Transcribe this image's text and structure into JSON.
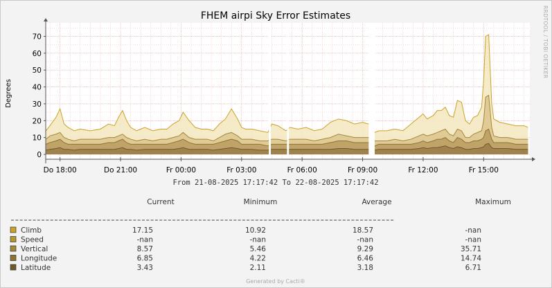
{
  "chart_data": {
    "type": "area",
    "title": "FHEM airpi Sky Error Estimates",
    "ylabel": "Degrees",
    "ylim": [
      0,
      78
    ],
    "yticks": [
      0,
      10,
      20,
      30,
      40,
      50,
      60,
      70
    ],
    "grid": true,
    "x_start_hours": 17.29,
    "x_end_hours": 41.29,
    "x_ticks": [
      {
        "label": "Do 18:00",
        "hour": 18
      },
      {
        "label": "Do 21:00",
        "hour": 21
      },
      {
        "label": "Fr 00:00",
        "hour": 24
      },
      {
        "label": "Fr 03:00",
        "hour": 27
      },
      {
        "label": "Fr 06:00",
        "hour": 30
      },
      {
        "label": "Fr 09:00",
        "hour": 33
      },
      {
        "label": "Fr 12:00",
        "hour": 36
      },
      {
        "label": "Fr 15:00",
        "hour": 39
      }
    ],
    "gaps": [
      [
        28.35,
        28.45
      ],
      [
        29.25,
        29.35
      ],
      [
        33.3,
        33.6
      ]
    ],
    "series": [
      {
        "name": "Climb",
        "color": "#c9a227",
        "x": [
          17.3,
          17.5,
          17.8,
          18.0,
          18.2,
          18.4,
          18.7,
          19.0,
          19.5,
          20.0,
          20.4,
          20.7,
          20.9,
          21.1,
          21.3,
          21.5,
          21.8,
          22.2,
          22.6,
          23.0,
          23.3,
          23.6,
          23.9,
          24.1,
          24.4,
          24.7,
          25.0,
          25.3,
          25.6,
          25.9,
          26.2,
          26.5,
          26.8,
          27.0,
          27.2,
          27.5,
          27.9,
          28.3,
          28.5,
          28.8,
          29.2,
          29.4,
          29.8,
          30.2,
          30.6,
          31.0,
          31.4,
          31.8,
          32.2,
          32.6,
          33.0,
          33.3,
          33.6,
          33.8,
          34.2,
          34.6,
          35.0,
          35.4,
          35.8,
          36.0,
          36.2,
          36.5,
          36.7,
          36.9,
          37.1,
          37.3,
          37.5,
          37.7,
          37.9,
          38.1,
          38.3,
          38.5,
          38.7,
          38.9,
          39.0,
          39.1,
          39.25,
          39.4,
          39.5,
          39.8,
          40.2,
          40.6,
          41.0,
          41.2
        ],
        "values": [
          14,
          17,
          22,
          27,
          18,
          16,
          14,
          15,
          14,
          15,
          18,
          17,
          22,
          26,
          20,
          16,
          14,
          16,
          14,
          15,
          15,
          18,
          20,
          25,
          20,
          16,
          15,
          15,
          14,
          18,
          21,
          27,
          21,
          16,
          15,
          15,
          14,
          13,
          18,
          17,
          14,
          16,
          15,
          16,
          14,
          15,
          19,
          21,
          20,
          18,
          19,
          18,
          13,
          14,
          14,
          15,
          14,
          18,
          22,
          24,
          21,
          23,
          26,
          26,
          28,
          23,
          22,
          32,
          31,
          20,
          18,
          22,
          23,
          28,
          44,
          70,
          71,
          30,
          21,
          19,
          18,
          17,
          17,
          16
        ]
      },
      {
        "name": "Speed",
        "color": "#b5962a",
        "x": [],
        "values": []
      },
      {
        "name": "Vertical",
        "color": "#a3873a",
        "x": [
          17.3,
          17.5,
          17.8,
          18.0,
          18.2,
          18.4,
          18.7,
          19.0,
          19.5,
          20.0,
          20.4,
          20.7,
          20.9,
          21.1,
          21.3,
          21.5,
          21.8,
          22.2,
          22.6,
          23.0,
          23.3,
          23.6,
          23.9,
          24.1,
          24.4,
          24.7,
          25.0,
          25.3,
          25.6,
          25.9,
          26.2,
          26.5,
          26.8,
          27.0,
          27.2,
          27.5,
          27.9,
          28.3,
          28.5,
          28.8,
          29.2,
          29.4,
          29.8,
          30.2,
          30.6,
          31.0,
          31.4,
          31.8,
          32.2,
          32.6,
          33.0,
          33.3,
          33.6,
          33.8,
          34.2,
          34.6,
          35.0,
          35.4,
          35.8,
          36.0,
          36.2,
          36.5,
          36.7,
          36.9,
          37.1,
          37.3,
          37.5,
          37.7,
          37.9,
          38.1,
          38.3,
          38.5,
          38.7,
          38.9,
          39.0,
          39.1,
          39.25,
          39.4,
          39.5,
          39.8,
          40.2,
          40.6,
          41.0,
          41.2
        ],
        "values": [
          9,
          11,
          12,
          13,
          10,
          9,
          8,
          9,
          9,
          9,
          10,
          10,
          11,
          12,
          10,
          9,
          8,
          9,
          8,
          9,
          9,
          10,
          11,
          13,
          10,
          9,
          9,
          9,
          8,
          10,
          12,
          13,
          11,
          9,
          9,
          9,
          8,
          8,
          9,
          9,
          8,
          9,
          9,
          9,
          8,
          9,
          10,
          12,
          11,
          10,
          10,
          10,
          8,
          8,
          8,
          9,
          8,
          9,
          11,
          12,
          11,
          12,
          13,
          14,
          15,
          12,
          11,
          15,
          14,
          10,
          10,
          12,
          13,
          14,
          20,
          34,
          35,
          16,
          11,
          10,
          10,
          9,
          9,
          9
        ]
      },
      {
        "name": "Longitude",
        "color": "#8c7332",
        "x": [
          17.3,
          17.5,
          17.8,
          18.0,
          18.2,
          18.4,
          18.7,
          19.0,
          19.5,
          20.0,
          20.4,
          20.7,
          20.9,
          21.1,
          21.3,
          21.5,
          21.8,
          22.2,
          22.6,
          23.0,
          23.3,
          23.6,
          23.9,
          24.1,
          24.4,
          24.7,
          25.0,
          25.3,
          25.6,
          25.9,
          26.2,
          26.5,
          26.8,
          27.0,
          27.2,
          27.5,
          27.9,
          28.3,
          28.5,
          28.8,
          29.2,
          29.4,
          29.8,
          30.2,
          30.6,
          31.0,
          31.4,
          31.8,
          32.2,
          32.6,
          33.0,
          33.3,
          33.6,
          33.8,
          34.2,
          34.6,
          35.0,
          35.4,
          35.8,
          36.0,
          36.2,
          36.5,
          36.7,
          36.9,
          37.1,
          37.3,
          37.5,
          37.7,
          37.9,
          38.1,
          38.3,
          38.5,
          38.7,
          38.9,
          39.0,
          39.1,
          39.25,
          39.4,
          39.5,
          39.8,
          40.2,
          40.6,
          41.0,
          41.2
        ],
        "values": [
          6,
          7,
          8,
          9,
          7,
          6,
          6,
          6,
          6,
          6,
          7,
          7,
          8,
          9,
          7,
          6,
          6,
          6,
          6,
          6,
          6,
          7,
          8,
          9,
          7,
          6,
          6,
          6,
          6,
          7,
          8,
          9,
          8,
          6,
          6,
          6,
          6,
          5,
          6,
          6,
          6,
          6,
          6,
          6,
          6,
          6,
          7,
          8,
          8,
          7,
          7,
          7,
          5,
          6,
          6,
          6,
          6,
          6,
          7,
          8,
          7,
          8,
          9,
          9,
          10,
          8,
          7,
          10,
          9,
          7,
          7,
          8,
          8,
          9,
          10,
          14,
          15,
          9,
          7,
          7,
          7,
          6,
          6,
          6
        ]
      },
      {
        "name": "Latitude",
        "color": "#6e5a28",
        "x": [
          17.3,
          17.5,
          17.8,
          18.0,
          18.2,
          18.4,
          18.7,
          19.0,
          19.5,
          20.0,
          20.4,
          20.7,
          20.9,
          21.1,
          21.3,
          21.5,
          21.8,
          22.2,
          22.6,
          23.0,
          23.3,
          23.6,
          23.9,
          24.1,
          24.4,
          24.7,
          25.0,
          25.3,
          25.6,
          25.9,
          26.2,
          26.5,
          26.8,
          27.0,
          27.2,
          27.5,
          27.9,
          28.3,
          28.5,
          28.8,
          29.2,
          29.4,
          29.8,
          30.2,
          30.6,
          31.0,
          31.4,
          31.8,
          32.2,
          32.6,
          33.0,
          33.3,
          33.6,
          33.8,
          34.2,
          34.6,
          35.0,
          35.4,
          35.8,
          36.0,
          36.2,
          36.5,
          36.7,
          36.9,
          37.1,
          37.3,
          37.5,
          37.7,
          37.9,
          38.1,
          38.3,
          38.5,
          38.7,
          38.9,
          39.0,
          39.1,
          39.25,
          39.4,
          39.5,
          39.8,
          40.2,
          40.6,
          41.0,
          41.2
        ],
        "values": [
          2.5,
          3,
          3.5,
          4,
          3,
          3,
          2.5,
          3,
          3,
          3,
          3,
          3,
          3.5,
          4,
          3,
          3,
          2.5,
          3,
          3,
          3,
          3,
          3,
          3.5,
          4,
          3,
          3,
          3,
          3,
          2.5,
          3,
          3.5,
          4,
          3.5,
          3,
          3,
          3,
          2.5,
          2.5,
          3,
          3,
          3,
          3,
          3,
          3,
          3,
          3,
          3,
          3.5,
          3.5,
          3,
          3,
          3,
          2.5,
          3,
          3,
          3,
          3,
          3,
          3.5,
          4,
          3.5,
          4,
          4,
          4.5,
          5,
          4,
          3.5,
          4.5,
          4,
          3,
          3,
          3.5,
          3.5,
          4,
          4.5,
          6,
          6.5,
          4,
          3.5,
          3.5,
          3.5,
          3,
          3,
          3
        ]
      }
    ]
  },
  "range_text": "From 21-08-2025 17:17:42 To 22-08-2025 17:17:42",
  "sidebar_text": "RRDTOOL / TOBI OETIKER",
  "legend": {
    "headers": [
      "Current",
      "Minimum",
      "Average",
      "Maximum"
    ],
    "rows": [
      {
        "name": "Climb",
        "color": "#c9a227",
        "current": "17.15",
        "minimum": "10.92",
        "average": "18.57",
        "maximum": "-nan"
      },
      {
        "name": "Speed",
        "color": "#b5962a",
        "current": "-nan",
        "minimum": "-nan",
        "average": "-nan",
        "maximum": "-nan"
      },
      {
        "name": "Vertical",
        "color": "#a3873a",
        "current": "8.57",
        "minimum": "5.46",
        "average": "9.29",
        "maximum": "35.71"
      },
      {
        "name": "Longitude",
        "color": "#8c7332",
        "current": "6.85",
        "minimum": "4.22",
        "average": "6.46",
        "maximum": "14.74"
      },
      {
        "name": "Latitude",
        "color": "#6e5a28",
        "current": "3.43",
        "minimum": "2.11",
        "average": "3.18",
        "maximum": "6.71"
      }
    ]
  },
  "footer": "Generated by Cacti®"
}
